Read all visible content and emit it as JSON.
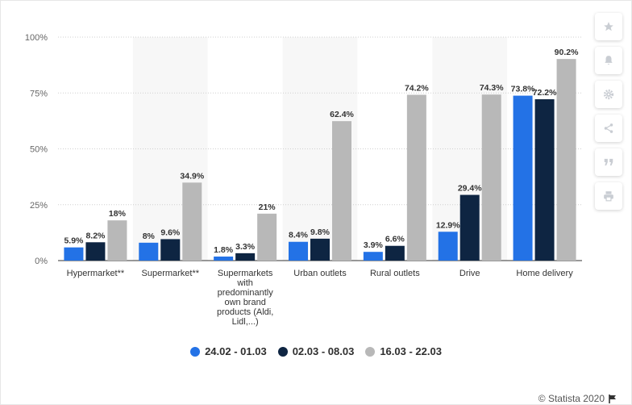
{
  "chart_data": {
    "type": "bar",
    "categories": [
      [
        "Hypermarket**"
      ],
      [
        "Supermarket**"
      ],
      [
        "Supermarkets",
        "with",
        "predominantly",
        "own brand",
        "products (Aldi,",
        "Lidl,...)"
      ],
      [
        "Urban outlets"
      ],
      [
        "Rural outlets"
      ],
      [
        "Drive"
      ],
      [
        "Home delivery"
      ]
    ],
    "series": [
      {
        "name": "24.02 - 01.03",
        "color": "#2372e6",
        "values": [
          5.9,
          8,
          1.8,
          8.4,
          3.9,
          12.9,
          73.8
        ],
        "labels": [
          "5.9%",
          "8%",
          "1.8%",
          "8.4%",
          "3.9%",
          "12.9%",
          "73.8%"
        ]
      },
      {
        "name": "02.03 - 08.03",
        "color": "#0e2542",
        "values": [
          8.2,
          9.6,
          3.3,
          9.8,
          6.6,
          29.4,
          72.2
        ],
        "labels": [
          "8.2%",
          "9.6%",
          "3.3%",
          "9.8%",
          "6.6%",
          "29.4%",
          "72.2%"
        ]
      },
      {
        "name": "16.03 - 22.03",
        "color": "#b8b8b8",
        "values": [
          18,
          34.9,
          21,
          62.4,
          74.2,
          74.3,
          90.2
        ],
        "labels": [
          "18%",
          "34.9%",
          "21%",
          "62.4%",
          "74.2%",
          "74.3%",
          "90.2%"
        ]
      }
    ],
    "yticks": [
      "0%",
      "25%",
      "50%",
      "75%",
      "100%"
    ],
    "ylim": [
      0,
      100
    ],
    "grid": true,
    "legend_position": "bottom"
  },
  "footer": {
    "credit": "© Statista 2020"
  },
  "toolbar": {
    "icons": [
      "star-icon",
      "bell-icon",
      "gear-icon",
      "share-icon",
      "quote-icon",
      "print-icon"
    ]
  }
}
